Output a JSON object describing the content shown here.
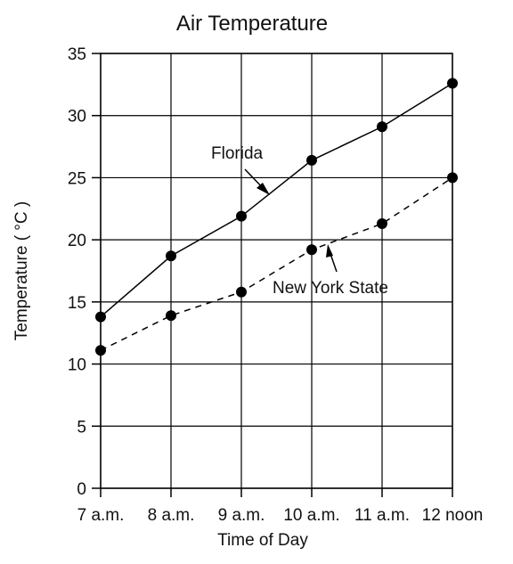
{
  "chart_data": {
    "type": "line",
    "title": "Air Temperature",
    "xlabel": "Time of Day",
    "ylabel": "Temperature ( °C )",
    "categories": [
      "7 a.m.",
      "8 a.m.",
      "9 a.m.",
      "10 a.m.",
      "11 a.m.",
      "12 noon"
    ],
    "ylim": [
      0,
      35
    ],
    "yticks": [
      "0",
      "5",
      "10",
      "15",
      "20",
      "25",
      "30",
      "35"
    ],
    "grid": true,
    "series": [
      {
        "name": "Florida",
        "values": [
          13.8,
          18.7,
          21.9,
          26.4,
          29.1,
          32.6
        ],
        "line_style": "solid",
        "color": "#000000"
      },
      {
        "name": "New York State",
        "values": [
          11.1,
          13.9,
          15.8,
          19.2,
          21.3,
          25.0
        ],
        "line_style": "dashed",
        "color": "#000000"
      }
    ]
  }
}
